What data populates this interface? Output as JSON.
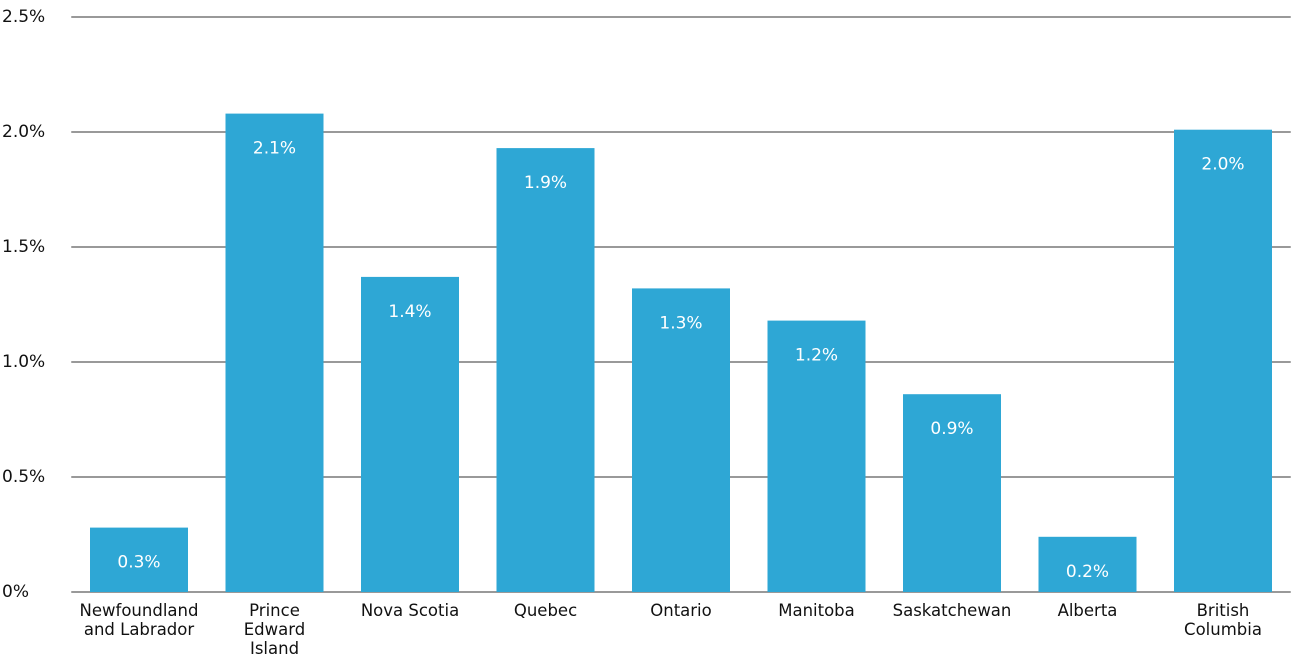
{
  "chart_data": {
    "type": "bar",
    "categories": [
      "Newfoundland and Labrador",
      "Prince Edward Island",
      "Nova Scotia",
      "Quebec",
      "Ontario",
      "Manitoba",
      "Saskatchewan",
      "Alberta",
      "British Columbia"
    ],
    "values": [
      0.28,
      2.08,
      1.37,
      1.93,
      1.32,
      1.18,
      0.86,
      0.24,
      2.01
    ],
    "value_labels": [
      "0.3%",
      "2.1%",
      "1.4%",
      "1.9%",
      "1.3%",
      "1.2%",
      "0.9%",
      "0.2%",
      "2.0%"
    ],
    "color": "#2ea7d5",
    "ylim": [
      0,
      2.5
    ],
    "yticks": [
      {
        "value": 0,
        "label": "0%"
      },
      {
        "value": 0.5,
        "label": "0.5%"
      },
      {
        "value": 1.0,
        "label": "1.0%"
      },
      {
        "value": 1.5,
        "label": "1.5%"
      },
      {
        "value": 2.0,
        "label": "2.0%"
      },
      {
        "value": 2.5,
        "label": "2.5%"
      }
    ],
    "grid": true
  }
}
